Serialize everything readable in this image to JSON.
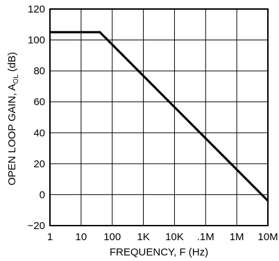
{
  "chart_data": {
    "type": "line",
    "title": "",
    "xlabel": "FREQUENCY, F (Hz)",
    "ylabel": {
      "main": "OPEN LOOP GAIN, A",
      "subscript": "OL",
      "unit": " (dB)"
    },
    "xscale": "log",
    "xlim": [
      1,
      10000000
    ],
    "ylim": [
      -20,
      120
    ],
    "grid": true,
    "x_ticks": [
      {
        "value": 1,
        "label": "1"
      },
      {
        "value": 10,
        "label": "10"
      },
      {
        "value": 100,
        "label": "100"
      },
      {
        "value": 1000,
        "label": "1K"
      },
      {
        "value": 10000,
        "label": "10K"
      },
      {
        "value": 100000,
        "label": ".1M"
      },
      {
        "value": 1000000,
        "label": "1M"
      },
      {
        "value": 10000000,
        "label": "10M"
      }
    ],
    "y_ticks": [
      {
        "value": -20,
        "label": "−20"
      },
      {
        "value": 0,
        "label": "0"
      },
      {
        "value": 20,
        "label": "20"
      },
      {
        "value": 40,
        "label": "40"
      },
      {
        "value": 60,
        "label": "60"
      },
      {
        "value": 80,
        "label": "80"
      },
      {
        "value": 100,
        "label": "100"
      },
      {
        "value": 120,
        "label": "120"
      }
    ],
    "series": [
      {
        "color": "#000000",
        "points": [
          {
            "x": 1,
            "y": 105
          },
          {
            "x": 40,
            "y": 105
          },
          {
            "x": 10000000,
            "y": -4
          }
        ]
      }
    ]
  }
}
